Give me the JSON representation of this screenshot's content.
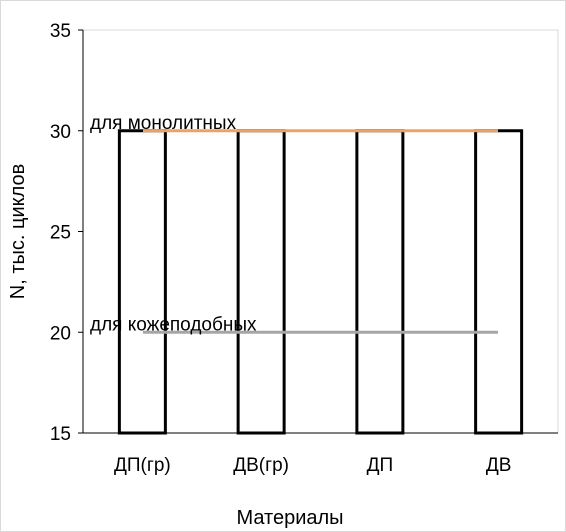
{
  "chart_data": {
    "type": "bar",
    "categories": [
      "ДП(гр)",
      "ДВ(гр)",
      "ДП",
      "ДВ"
    ],
    "values": [
      30,
      30,
      30,
      30
    ],
    "xlabel": "Материалы",
    "ylabel": "N, тыс. циклов",
    "ylim": [
      15,
      35
    ],
    "yticks": [
      15,
      20,
      25,
      30,
      35
    ],
    "grid": false,
    "bar_fill": "#ffffff",
    "bar_edge": "#000000",
    "reference_lines": [
      {
        "label": "для монолитных",
        "value": 30,
        "color": "#f0a060"
      },
      {
        "label": "для кожеподобных",
        "value": 20,
        "color": "#a6a6a6"
      }
    ]
  }
}
